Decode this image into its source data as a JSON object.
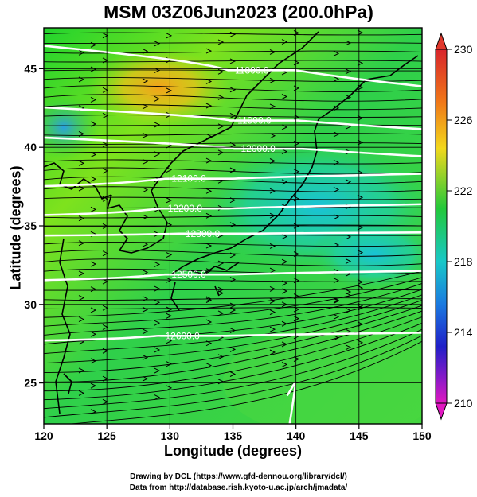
{
  "title": "MSM 03Z06Jun2023 (200.0hPa)",
  "footer": {
    "line1": "Drawing by DCL (https://www.gfd-dennou.org/library/dcl/)",
    "line2": "Data from http://database.rish.kyoto-u.ac.jp/arch/jmadata/"
  },
  "colorbar": {
    "range": [
      210,
      230
    ],
    "ticks": [
      "230",
      "226",
      "222",
      "218",
      "214",
      "210"
    ]
  },
  "chart_data": {
    "type": "heatmap",
    "title": "MSM 03Z06Jun2023 (200.0hPa)",
    "xlabel": "Longitude (degrees)",
    "ylabel": "Latitude  (degrees)",
    "xlim": [
      120,
      150
    ],
    "ylim": [
      22.4,
      47.6
    ],
    "xticks": [
      "120",
      "125",
      "130",
      "135",
      "140",
      "145",
      "150"
    ],
    "yticks": [
      "25",
      "30",
      "35",
      "40",
      "45"
    ],
    "grid": true,
    "contours": [
      {
        "label": "11800.0",
        "lon": 136.5,
        "lat": 44.7
      },
      {
        "label": "11900.0",
        "lon": 136.7,
        "lat": 41.5
      },
      {
        "label": "12000.0",
        "lon": 137.0,
        "lat": 39.7
      },
      {
        "label": "12100.0",
        "lon": 131.5,
        "lat": 37.8
      },
      {
        "label": "12200.0",
        "lon": 131.2,
        "lat": 35.9
      },
      {
        "label": "12300.0",
        "lon": 132.6,
        "lat": 34.3
      },
      {
        "label": "12500.0",
        "lon": 131.5,
        "lat": 31.7
      },
      {
        "label": "12600.0",
        "lon": 131.0,
        "lat": 27.8
      }
    ]
  }
}
